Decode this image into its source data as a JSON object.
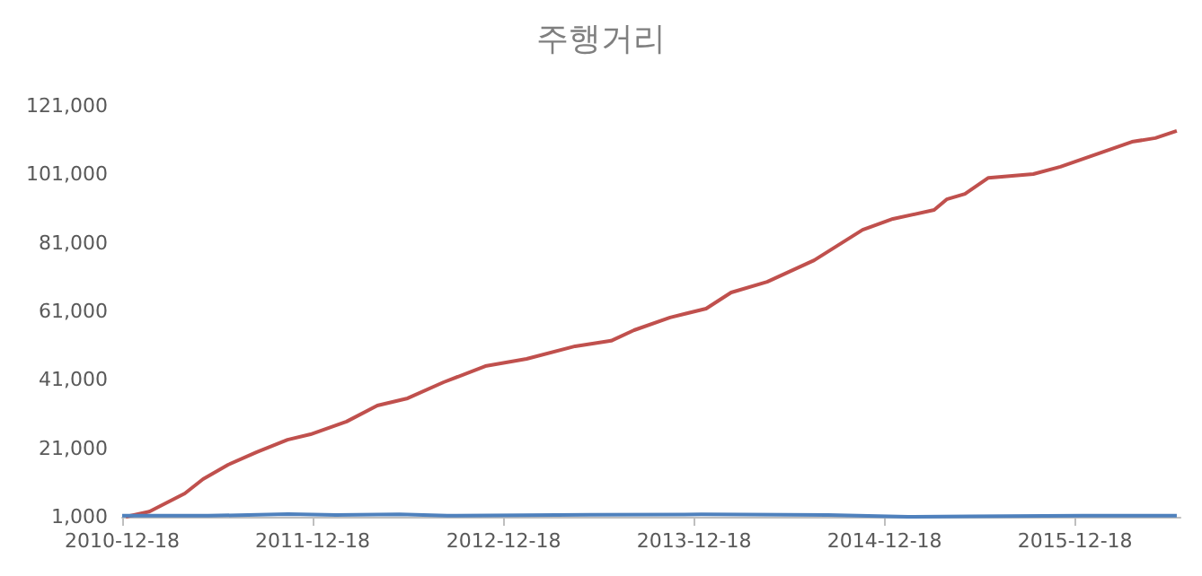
{
  "chart_data": {
    "type": "line",
    "title": "주행거리",
    "xlim": [
      "2010-12-18",
      "2016-07-07"
    ],
    "xticks": [
      "2010-12-18",
      "2011-12-18",
      "2012-12-18",
      "2013-12-18",
      "2014-12-18",
      "2015-12-18"
    ],
    "ylim": [
      1000,
      121000
    ],
    "yticks": [
      {
        "value": 1000,
        "label": "1,000"
      },
      {
        "value": 21000,
        "label": "21,000"
      },
      {
        "value": 41000,
        "label": "41,000"
      },
      {
        "value": 61000,
        "label": "61,000"
      },
      {
        "value": 81000,
        "label": "81,000"
      },
      {
        "value": 101000,
        "label": "101,000"
      },
      {
        "value": 121000,
        "label": "121,000"
      }
    ],
    "series": [
      {
        "color": "#c0504d",
        "x": [
          "2010-12-25",
          "2011-02-08",
          "2011-04-17",
          "2011-05-22",
          "2011-07-09",
          "2011-09-02",
          "2011-10-31",
          "2011-12-14",
          "2012-02-21",
          "2012-04-20",
          "2012-06-17",
          "2012-08-25",
          "2012-11-13",
          "2013-01-31",
          "2013-05-04",
          "2013-07-12",
          "2013-08-25",
          "2013-11-02",
          "2014-01-10",
          "2014-02-27",
          "2014-05-07",
          "2014-08-05",
          "2014-11-06",
          "2015-01-03",
          "2015-03-23",
          "2015-04-16",
          "2015-05-21",
          "2015-07-05",
          "2015-09-29",
          "2015-11-20",
          "2016-02-07",
          "2016-04-05",
          "2016-05-20",
          "2016-06-30"
        ],
        "values": [
          1000,
          2500,
          7800,
          12000,
          16200,
          19900,
          23500,
          25100,
          28800,
          33500,
          35600,
          40300,
          45000,
          47100,
          50800,
          52400,
          55500,
          59200,
          61800,
          66500,
          69600,
          75900,
          84800,
          88000,
          90600,
          93700,
          95300,
          100000,
          101100,
          103200,
          107400,
          110500,
          111600,
          113700
        ]
      },
      {
        "color": "#4f81bd",
        "x": [
          "2010-12-18",
          "2011-06-01",
          "2011-11-01",
          "2012-02-01",
          "2012-06-01",
          "2012-09-01",
          "2013-06-01",
          "2014-01-01",
          "2014-09-01",
          "2015-02-01",
          "2015-06-01",
          "2016-01-01",
          "2016-06-30"
        ],
        "values": [
          1300,
          1300,
          1800,
          1500,
          1700,
          1300,
          1600,
          1700,
          1500,
          1000,
          1100,
          1300,
          1300
        ]
      }
    ]
  }
}
